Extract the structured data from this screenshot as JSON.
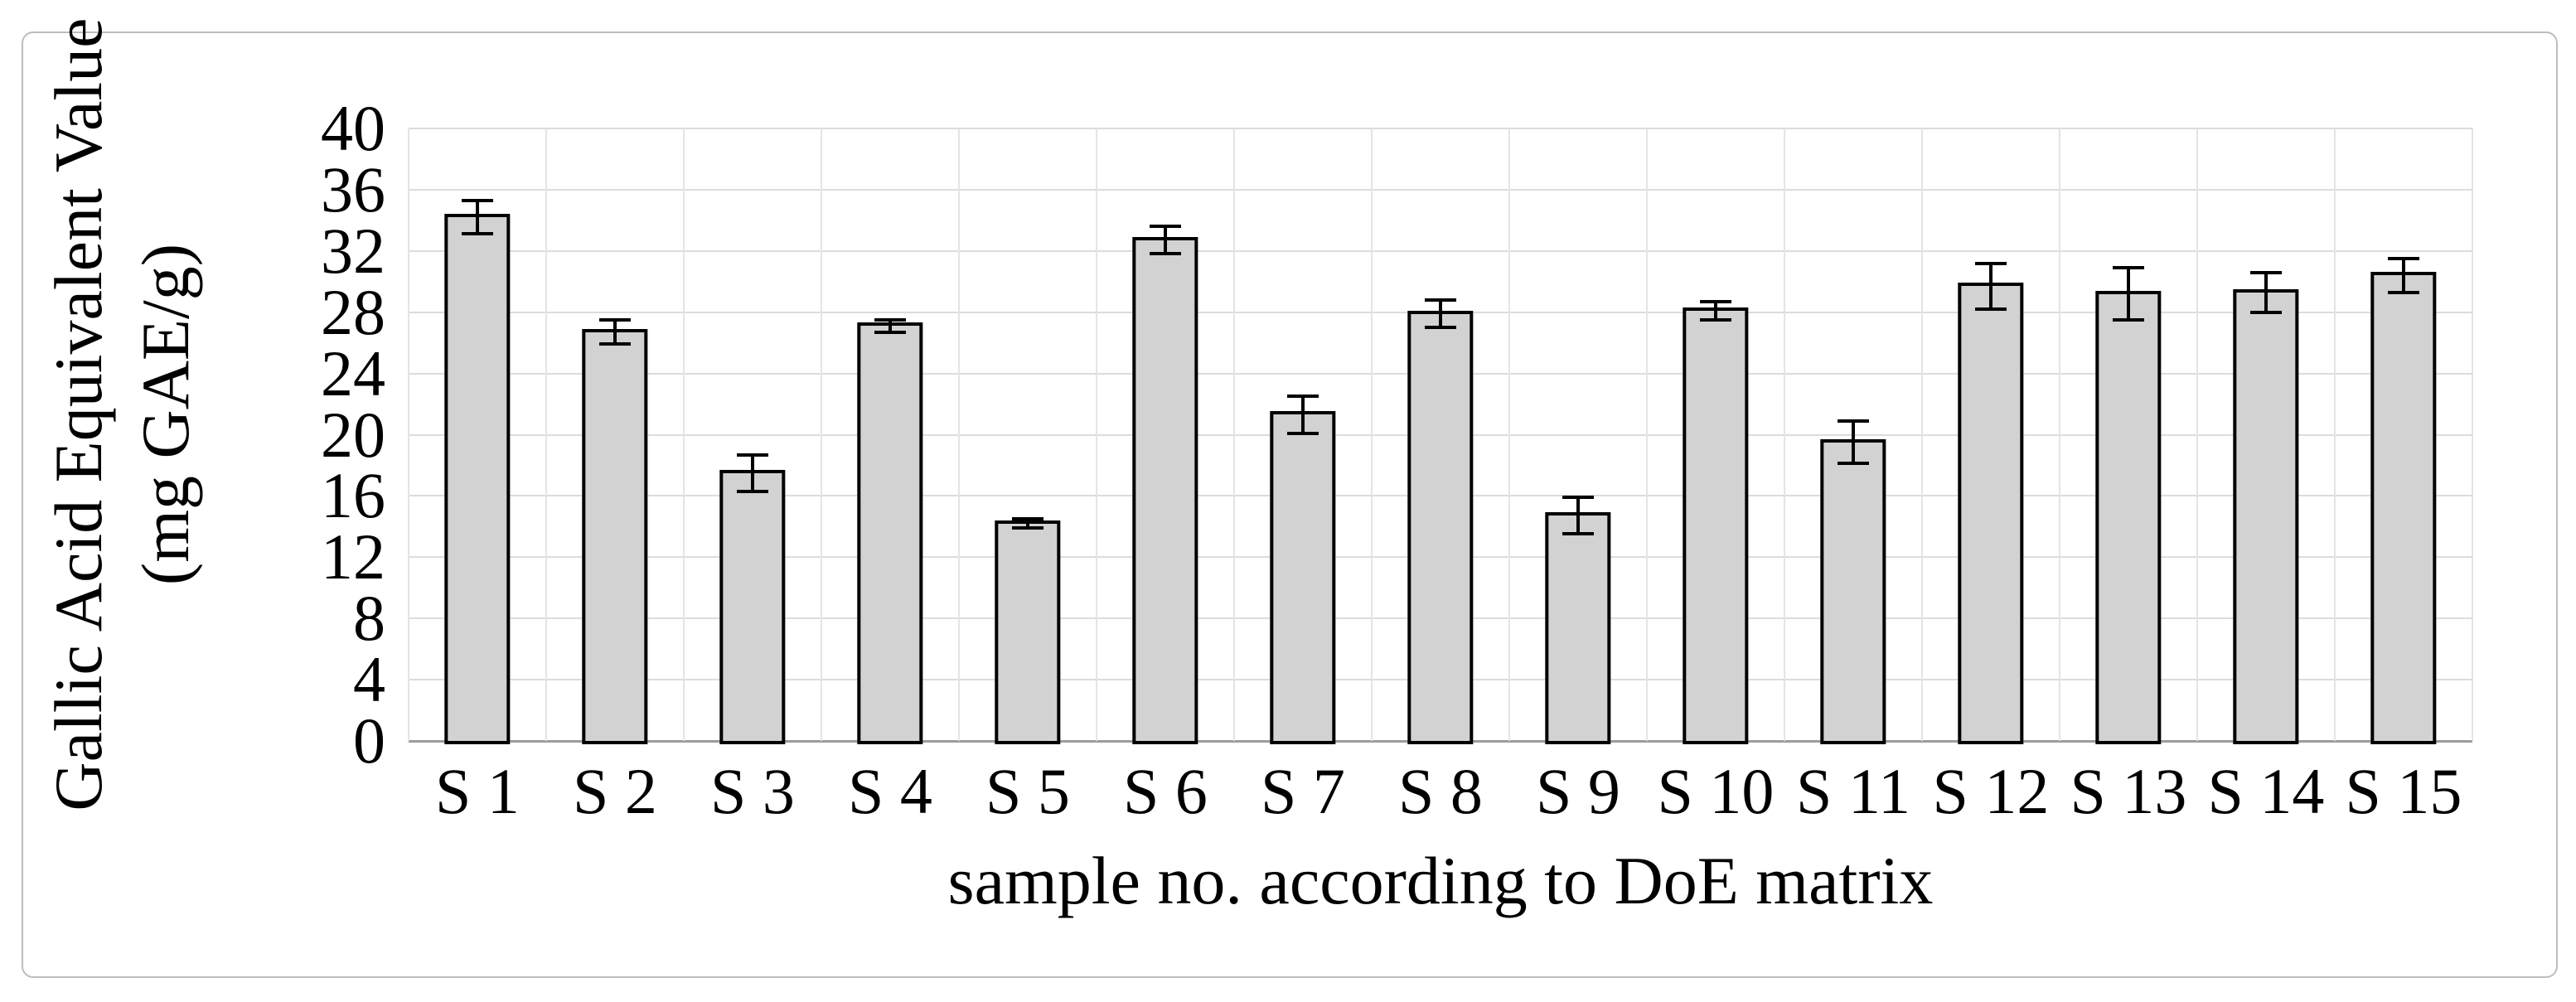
{
  "figure": {
    "background": "#ffffff",
    "border_color": "#bdbdbd"
  },
  "chart_data": {
    "type": "bar",
    "title": "",
    "categories": [
      "S 1",
      "S 2",
      "S 3",
      "S 4",
      "S 5",
      "S 6",
      "S 7",
      "S 8",
      "S 9",
      "S 10",
      "S 11",
      "S 12",
      "S 13",
      "S 14",
      "S 15"
    ],
    "values": [
      34.2,
      26.7,
      17.5,
      27.1,
      14.2,
      32.7,
      21.3,
      27.9,
      14.7,
      28.1,
      19.5,
      29.7,
      29.2,
      29.3,
      30.4
    ],
    "error_bars": [
      1.2,
      0.9,
      1.3,
      0.5,
      0.4,
      1.0,
      1.3,
      1.0,
      1.3,
      0.7,
      1.5,
      1.6,
      1.8,
      1.4,
      1.2
    ],
    "xlabel": "sample no. according to DoE matrix",
    "ylabel_line1": "Gallic Acid Equivalent Value",
    "ylabel_line2": "(mg GAE/g)",
    "ylim": [
      0,
      40
    ],
    "yticks": [
      40,
      36,
      32,
      28,
      24,
      20,
      16,
      12,
      8,
      4,
      0
    ],
    "grid": "horizontal major gridlines every 4 units; vertical gridlines at category boundaries",
    "legend": "none",
    "bar_fill_color": "#d2d2d2",
    "bar_border_color": "#000000",
    "error_bar_color": "#000000",
    "gridline_color": "#dcdcdc",
    "vertical_gridline_color": "#e4e4e4",
    "axis_line_color": "#9c9c9c"
  }
}
